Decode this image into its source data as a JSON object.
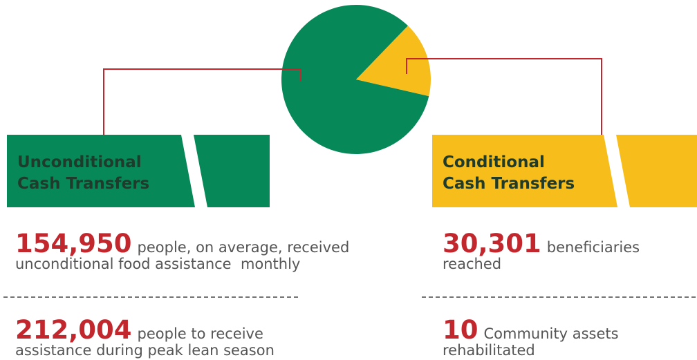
{
  "panels": [
    {
      "title": [
        "Unconditional",
        "Cash Transfers"
      ],
      "stats": [
        {
          "value": 154950,
          "label": "154,950",
          "lines": [
            "people, on average, received",
            "unconditional food assistance  monthly"
          ]
        },
        {
          "value": 212004,
          "label": "212,004",
          "lines": [
            "people to receive",
            "assistance during peak lean season"
          ]
        }
      ]
    },
    {
      "title": [
        "Conditional",
        "Cash Transfers"
      ],
      "stats": [
        {
          "value": 30301,
          "label": "30,301",
          "lines": [
            "beneficiaries",
            "reached"
          ]
        },
        {
          "value": 10,
          "label": "10",
          "lines": [
            "Community assets",
            "rehabilitated"
          ]
        }
      ]
    }
  ]
}
